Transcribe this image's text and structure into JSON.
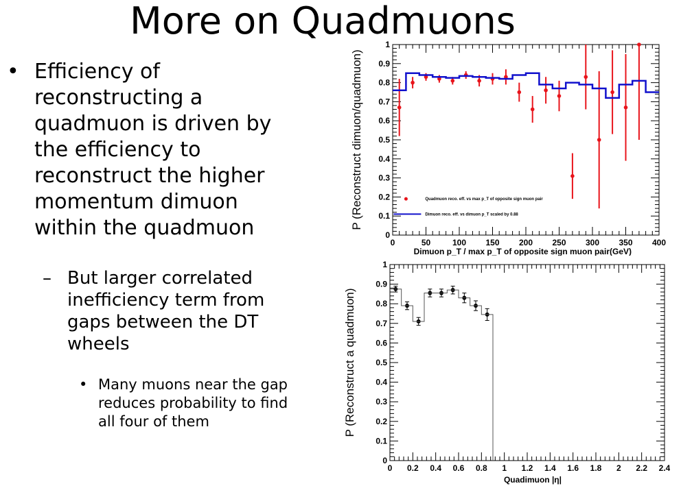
{
  "slide": {
    "title": "More on Quadmuons",
    "bullet1": "Efficiency of reconstructing a quadmuon is driven by the efficiency to reconstruct the higher momentum dimuon within the quadmuon",
    "bullet2": "But larger correlated inefficiency term from gaps between the DT wheels",
    "bullet3": "Many muons near the gap reduces probability to find all four of them",
    "bullet_glyph": "•",
    "dash_glyph": "–"
  },
  "chart_data": [
    {
      "type": "line",
      "ylabel": "P (Reconstruct dimuon/quadmuon)",
      "xlabel": "Dimuon p_T / max p_T of opposite sign muon pair(GeV)",
      "xlim": [
        0,
        400
      ],
      "ylim": [
        0,
        1
      ],
      "xticks": [
        0,
        50,
        100,
        150,
        200,
        250,
        300,
        350,
        400
      ],
      "yticks": [
        0,
        0.1,
        0.2,
        0.3,
        0.4,
        0.5,
        0.6,
        0.7,
        0.8,
        0.9,
        1
      ],
      "legend": [
        "Quadmuon reco. eff. vs max p_T of opposite sign muon pair",
        "Dimuon reco. eff. vs dimuon p_T scaled by 0.88"
      ],
      "colors": {
        "points": "#e8141b",
        "step": "#1010cc"
      },
      "series": [
        {
          "name": "Quadmuon reco. eff. vs max p_T of opposite sign muon pair",
          "kind": "points",
          "x": [
            10,
            30,
            50,
            70,
            90,
            110,
            130,
            150,
            170,
            190,
            210,
            230,
            250,
            270,
            290,
            310,
            330,
            350,
            370
          ],
          "y": [
            0.67,
            0.8,
            0.83,
            0.82,
            0.81,
            0.84,
            0.81,
            0.82,
            0.83,
            0.75,
            0.66,
            0.76,
            0.73,
            0.31,
            0.83,
            0.5,
            0.75,
            0.67,
            1.0
          ],
          "err": [
            0.15,
            0.03,
            0.02,
            0.02,
            0.02,
            0.02,
            0.03,
            0.03,
            0.04,
            0.05,
            0.07,
            0.07,
            0.08,
            0.12,
            0.17,
            0.36,
            0.22,
            0.28,
            0.5
          ]
        },
        {
          "name": "Dimuon reco. eff. vs dimuon p_T scaled by 0.88",
          "kind": "step",
          "edges": [
            0,
            20,
            40,
            60,
            80,
            100,
            120,
            140,
            160,
            180,
            200,
            220,
            240,
            260,
            280,
            300,
            320,
            340,
            360,
            380,
            400
          ],
          "values": [
            0.76,
            0.85,
            0.84,
            0.83,
            0.825,
            0.835,
            0.83,
            0.825,
            0.82,
            0.84,
            0.85,
            0.79,
            0.77,
            0.8,
            0.79,
            0.77,
            0.72,
            0.79,
            0.81,
            0.75
          ]
        }
      ]
    },
    {
      "type": "line",
      "ylabel": "P (Reconstruct a quadmuon)",
      "xlabel": "Quadimuon |η|",
      "xlim": [
        0,
        2.4
      ],
      "ylim": [
        0,
        1
      ],
      "xticks": [
        0,
        0.2,
        0.4,
        0.6,
        0.8,
        1,
        1.2,
        1.4,
        1.6,
        1.8,
        2,
        2.2,
        2.4
      ],
      "yticks": [
        0,
        0.1,
        0.2,
        0.3,
        0.4,
        0.5,
        0.6,
        0.7,
        0.8,
        0.9,
        1
      ],
      "colors": {
        "points": "#000000",
        "step": "#555555"
      },
      "series": [
        {
          "kind": "points",
          "x": [
            0.05,
            0.15,
            0.25,
            0.35,
            0.45,
            0.55,
            0.65,
            0.75,
            0.85
          ],
          "y": [
            0.875,
            0.79,
            0.71,
            0.855,
            0.855,
            0.87,
            0.83,
            0.79,
            0.745
          ],
          "err": [
            0.015,
            0.02,
            0.02,
            0.02,
            0.02,
            0.02,
            0.025,
            0.025,
            0.03
          ]
        },
        {
          "kind": "step",
          "edges": [
            0,
            0.1,
            0.2,
            0.3,
            0.4,
            0.5,
            0.6,
            0.7,
            0.8,
            0.9
          ],
          "values": [
            0.875,
            0.79,
            0.71,
            0.855,
            0.855,
            0.87,
            0.83,
            0.79,
            0.745
          ]
        }
      ]
    }
  ]
}
